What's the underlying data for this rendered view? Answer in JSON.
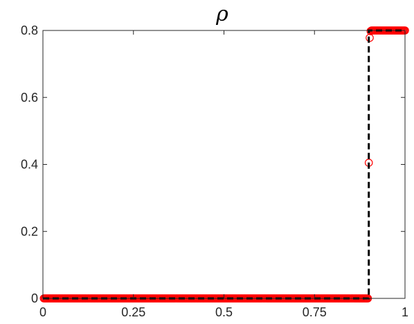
{
  "chart_data": {
    "type": "scatter",
    "title": "ρ",
    "xlabel": "",
    "ylabel": "",
    "xlim": [
      0,
      1
    ],
    "ylim": [
      0,
      0.8
    ],
    "xticks": [
      0,
      0.25,
      0.5,
      0.75,
      1
    ],
    "xtick_labels": [
      "0",
      "0.25",
      "0.5",
      "0.75",
      "1"
    ],
    "yticks": [
      0,
      0.2,
      0.4,
      0.6,
      0.8
    ],
    "ytick_labels": [
      "0",
      "0.2",
      "0.4",
      "0.6",
      "0.8"
    ],
    "grid": false,
    "legend": "none",
    "series": [
      {
        "style": "markers",
        "marker": "circle-open",
        "color": "#ff0000",
        "x_start": 0.0025,
        "x_step": 0.0025,
        "x_end": 1.0,
        "left_value": 0.0,
        "right_value": 0.8,
        "jump_points": [
          {
            "x": 0.8975,
            "y": 0.0
          },
          {
            "x": 0.9,
            "y": 0.405
          },
          {
            "x": 0.9025,
            "y": 0.778
          },
          {
            "x": 0.905,
            "y": 0.798
          }
        ]
      },
      {
        "style": "dashed-line",
        "color": "#000000",
        "x": [
          0.0,
          0.9,
          0.9,
          1.0
        ],
        "y": [
          0.0,
          0.0,
          0.8,
          0.8
        ]
      }
    ]
  }
}
